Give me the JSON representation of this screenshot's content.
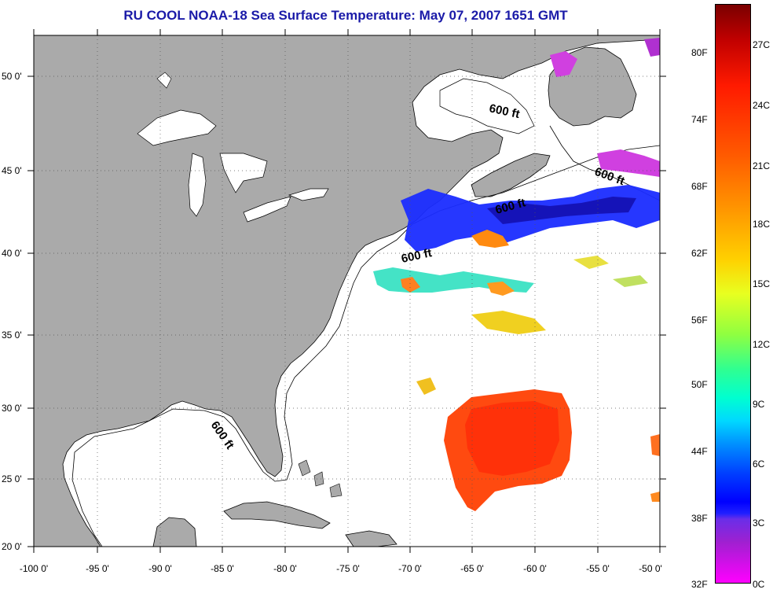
{
  "title": "RU COOL  NOAA-18  Sea Surface Temperature:  May 07, 2007 1651 GMT",
  "axes": {
    "lon_labels": [
      "-100 0'",
      "-95 0'",
      "-90 0'",
      "-85 0'",
      "-80 0'",
      "-75 0'",
      "-70 0'",
      "-65 0'",
      "-60 0'",
      "-55 0'",
      "-50 0'"
    ],
    "lat_labels": [
      "50 0'",
      "45 0'",
      "40 0'",
      "35 0'",
      "30 0'",
      "25 0'",
      "20 0'"
    ]
  },
  "contour_label": "600 ft",
  "colorbar": {
    "fahrenheit": [
      "80F",
      "74F",
      "68F",
      "62F",
      "56F",
      "50F",
      "44F",
      "38F",
      "32F"
    ],
    "celsius": [
      "27C",
      "24C",
      "21C",
      "18C",
      "15C",
      "12C",
      "9C",
      "6C",
      "3C",
      "0C"
    ]
  },
  "colors": {
    "land": "#aaaaaa",
    "ocean_no_data": "#ffffff",
    "title": "#1a1aa8"
  }
}
